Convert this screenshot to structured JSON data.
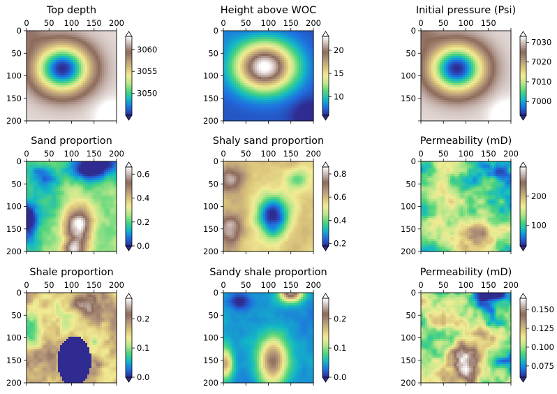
{
  "colormap": [
    "#2f2b91",
    "#1f6fe0",
    "#12b8c6",
    "#4fd47c",
    "#b7e68a",
    "#f2ec94",
    "#d9c27a",
    "#b3967a",
    "#8c6a5a",
    "#c6b3ad",
    "#ffffff"
  ],
  "chart_data": [
    {
      "type": "heatmap",
      "title": "Top depth",
      "field": "topdepth",
      "xticks": [
        "0",
        "50",
        "100",
        "150",
        "200"
      ],
      "yticks": [
        "0",
        "50",
        "100",
        "150",
        "200"
      ],
      "vmin": 3045,
      "vmax": 3063,
      "cbar_ticks": [
        {
          "value": 3050,
          "label": "3050"
        },
        {
          "value": 3055,
          "label": "3055"
        },
        {
          "value": 3060,
          "label": "3060"
        }
      ],
      "extend": "both"
    },
    {
      "type": "heatmap",
      "title": "Height above WOC",
      "field": "height",
      "xticks": [
        "0",
        "50",
        "100",
        "150",
        "200"
      ],
      "yticks": [
        "0",
        "50",
        "100",
        "150",
        "200"
      ],
      "vmin": 6,
      "vmax": 23,
      "cbar_ticks": [
        {
          "value": 10,
          "label": "10"
        },
        {
          "value": 15,
          "label": "15"
        },
        {
          "value": 20,
          "label": "20"
        }
      ],
      "extend": "both"
    },
    {
      "type": "heatmap",
      "title": "Initial pressure (Psi)",
      "field": "pressure",
      "xticks": [
        "0",
        "50",
        "100",
        "150",
        ""
      ],
      "yticks": [
        "0",
        "50",
        "100",
        "150",
        ""
      ],
      "vmin": 6993,
      "vmax": 7033,
      "cbar_ticks": [
        {
          "value": 7000,
          "label": "7000"
        },
        {
          "value": 7010,
          "label": "7010"
        },
        {
          "value": 7020,
          "label": "7020"
        },
        {
          "value": 7030,
          "label": "7030"
        }
      ],
      "extend": "both"
    },
    {
      "type": "heatmap",
      "title": "Sand proportion",
      "field": "sand",
      "xticks": [
        "0",
        "50",
        "100",
        "150",
        "200"
      ],
      "yticks": [
        "0",
        "50",
        "100",
        "150",
        "200"
      ],
      "vmin": 0.0,
      "vmax": 0.66,
      "cbar_ticks": [
        {
          "value": 0.0,
          "label": "0.0"
        },
        {
          "value": 0.2,
          "label": "0.2"
        },
        {
          "value": 0.4,
          "label": "0.4"
        },
        {
          "value": 0.6,
          "label": "0.6"
        }
      ],
      "extend": "both"
    },
    {
      "type": "heatmap",
      "title": "Shaly sand proportion",
      "field": "shalysand",
      "xticks": [
        "0",
        "50",
        "100",
        "150",
        "200"
      ],
      "yticks": [
        "0",
        "50",
        "100",
        "150",
        "200"
      ],
      "vmin": 0.18,
      "vmax": 0.86,
      "cbar_ticks": [
        {
          "value": 0.2,
          "label": "0.2"
        },
        {
          "value": 0.4,
          "label": "0.4"
        },
        {
          "value": 0.6,
          "label": "0.6"
        },
        {
          "value": 0.8,
          "label": "0.8"
        }
      ],
      "extend": "both"
    },
    {
      "type": "heatmap",
      "title": "Permeability (mD)",
      "field": "perm1",
      "xticks": [
        "0",
        "50",
        "100",
        "150",
        "200"
      ],
      "yticks": [
        "0",
        "50",
        "100",
        "150",
        "200"
      ],
      "vmin": 30,
      "vmax": 300,
      "cbar_ticks": [
        {
          "value": 100,
          "label": "100"
        },
        {
          "value": 200,
          "label": "200"
        }
      ],
      "extend": "both"
    },
    {
      "type": "heatmap",
      "title": "Shale proportion",
      "field": "shale",
      "xticks": [
        "0",
        "50",
        "100",
        "150",
        "200"
      ],
      "yticks": [
        "0",
        "50",
        "100",
        "150",
        "200"
      ],
      "vmin": 0.0,
      "vmax": 0.27,
      "cbar_ticks": [
        {
          "value": 0.0,
          "label": "0.0"
        },
        {
          "value": 0.1,
          "label": "0.1"
        },
        {
          "value": 0.2,
          "label": "0.2"
        }
      ],
      "extend": "both"
    },
    {
      "type": "heatmap",
      "title": "Sandy shale proportion",
      "field": "sandyshale",
      "xticks": [
        "0",
        "50",
        "100",
        "150",
        "200"
      ],
      "yticks": [
        "0",
        "50",
        "100",
        "150",
        "200"
      ],
      "vmin": 0.0,
      "vmax": 0.27,
      "cbar_ticks": [
        {
          "value": 0.0,
          "label": "0.0"
        },
        {
          "value": 0.1,
          "label": "0.1"
        },
        {
          "value": 0.2,
          "label": "0.2"
        }
      ],
      "extend": "both"
    },
    {
      "type": "heatmap",
      "title": "Permeability (mD)",
      "field": "perm2",
      "xticks": [
        "0",
        "50",
        "100",
        "150",
        "200"
      ],
      "yticks": [
        "0",
        "50",
        "100",
        "150",
        "200"
      ],
      "vmin": 0.06,
      "vmax": 0.165,
      "cbar_ticks": [
        {
          "value": 0.075,
          "label": "0.075"
        },
        {
          "value": 0.1,
          "label": "0.100"
        },
        {
          "value": 0.125,
          "label": "0.125"
        },
        {
          "value": 0.15,
          "label": "0.150"
        }
      ],
      "extend": "both"
    }
  ]
}
